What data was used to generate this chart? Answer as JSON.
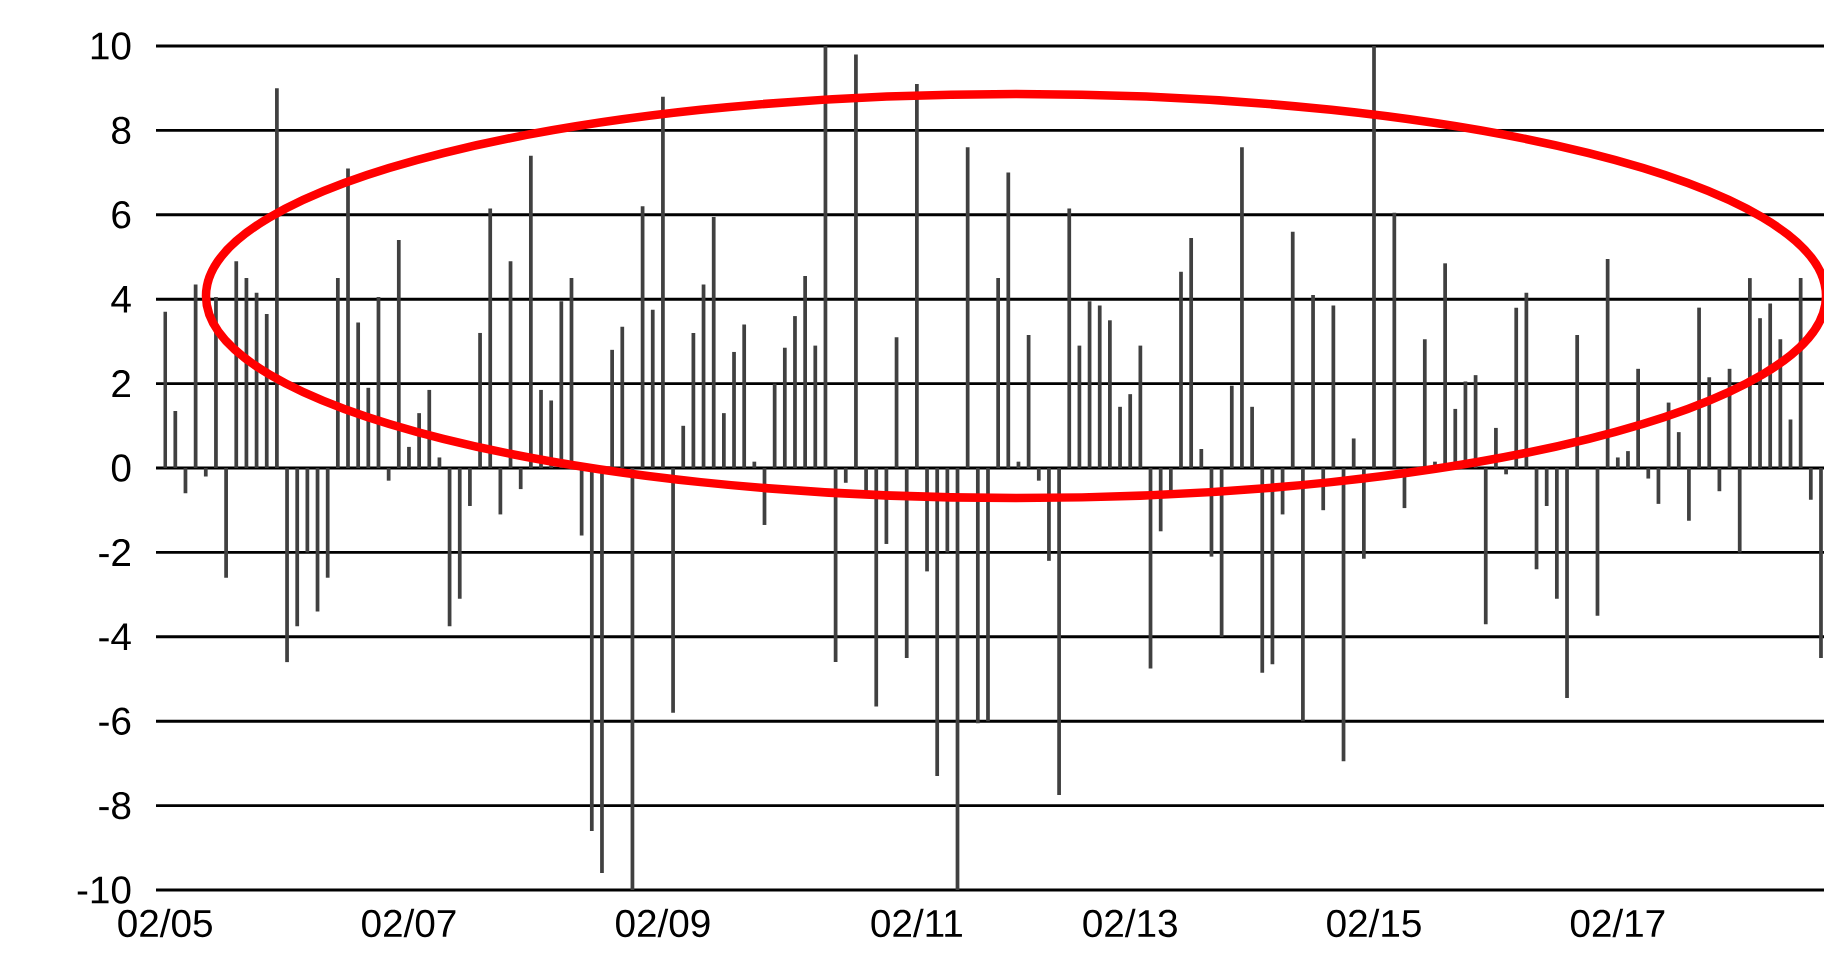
{
  "chart_data": {
    "type": "bar",
    "categories": [
      "02/05",
      null,
      null,
      null,
      null,
      null,
      null,
      null,
      null,
      null,
      null,
      null,
      null,
      null,
      null,
      null,
      null,
      null,
      null,
      null,
      null,
      null,
      null,
      null,
      "02/07",
      null,
      null,
      null,
      null,
      null,
      null,
      null,
      null,
      null,
      null,
      null,
      null,
      null,
      null,
      null,
      null,
      null,
      null,
      null,
      null,
      null,
      null,
      null,
      null,
      "02/09",
      null,
      null,
      null,
      null,
      null,
      null,
      null,
      null,
      null,
      null,
      null,
      null,
      null,
      null,
      null,
      null,
      null,
      null,
      null,
      null,
      null,
      null,
      null,
      null,
      "02/11",
      null,
      null,
      null,
      null,
      null,
      null,
      null,
      null,
      null,
      null,
      null,
      null,
      null,
      null,
      null,
      null,
      null,
      null,
      null,
      null,
      "02/13",
      null,
      null,
      null,
      null,
      null,
      null,
      null,
      null,
      null,
      null,
      null,
      null,
      null,
      null,
      null,
      null,
      null,
      null,
      null,
      null,
      null,
      null,
      null,
      "02/15",
      null,
      null,
      null,
      null,
      null,
      null,
      null,
      null,
      null,
      null,
      null,
      null,
      null,
      null,
      null,
      null,
      null,
      null,
      null,
      null,
      null,
      null,
      null,
      "02/17",
      null,
      null,
      null,
      null,
      null,
      null,
      null,
      null,
      null,
      null,
      null,
      null,
      null,
      null,
      null,
      null,
      null,
      null,
      null,
      null
    ],
    "values": [
      3.7,
      1.35,
      -0.6,
      4.35,
      -0.2,
      4.05,
      -2.6,
      4.9,
      4.5,
      4.15,
      3.65,
      9.0,
      -4.6,
      -3.75,
      -2.0,
      -3.4,
      -2.6,
      4.5,
      7.1,
      3.45,
      1.9,
      4.05,
      -0.3,
      5.4,
      0.5,
      1.3,
      1.85,
      0.25,
      -3.75,
      -3.1,
      -0.9,
      3.2,
      6.15,
      -1.1,
      4.9,
      -0.5,
      7.4,
      1.85,
      1.6,
      3.95,
      4.5,
      -1.6,
      -8.6,
      -9.6,
      2.8,
      3.35,
      -10,
      6.2,
      3.75,
      8.8,
      -5.8,
      1.0,
      3.2,
      4.35,
      5.95,
      1.3,
      2.75,
      3.4,
      0.15,
      -1.35,
      2.0,
      2.85,
      3.6,
      4.55,
      2.9,
      10.0,
      -4.6,
      -0.35,
      9.8,
      -0.6,
      -5.65,
      -1.8,
      3.1,
      -4.5,
      9.1,
      -2.45,
      -7.3,
      -2.0,
      -10,
      7.6,
      -6.05,
      -6.0,
      4.5,
      7.0,
      0.15,
      3.15,
      -0.3,
      -2.2,
      -7.75,
      6.15,
      2.9,
      3.95,
      3.85,
      3.5,
      1.45,
      1.75,
      2.9,
      -4.75,
      -1.5,
      -0.65,
      4.65,
      5.45,
      0.45,
      -2.1,
      -4.0,
      1.95,
      7.6,
      1.45,
      -4.85,
      -4.65,
      -1.1,
      5.6,
      -6.0,
      4.1,
      -1.0,
      3.85,
      -6.95,
      0.7,
      -2.15,
      10.0,
      null,
      6.05,
      -0.95,
      null,
      3.05,
      0.15,
      4.85,
      1.4,
      2.05,
      2.2,
      -3.7,
      0.95,
      -0.15,
      3.8,
      4.15,
      -2.4,
      -0.9,
      -3.1,
      -5.45,
      3.15,
      null,
      -3.5,
      4.95,
      0.25,
      0.4,
      2.35,
      -0.25,
      -0.85,
      1.55,
      0.85,
      -1.25,
      3.8,
      2.15,
      -0.55,
      2.35,
      -2.0,
      4.5,
      3.55,
      3.9,
      3.05,
      1.15,
      4.5,
      -0.75,
      -4.5
    ],
    "color": "#404040",
    "ylim": [
      -10,
      10
    ],
    "yticks": [
      -10,
      -8,
      -6,
      -4,
      -2,
      0,
      2,
      4,
      6,
      8,
      10
    ],
    "grid": "y"
  }
}
